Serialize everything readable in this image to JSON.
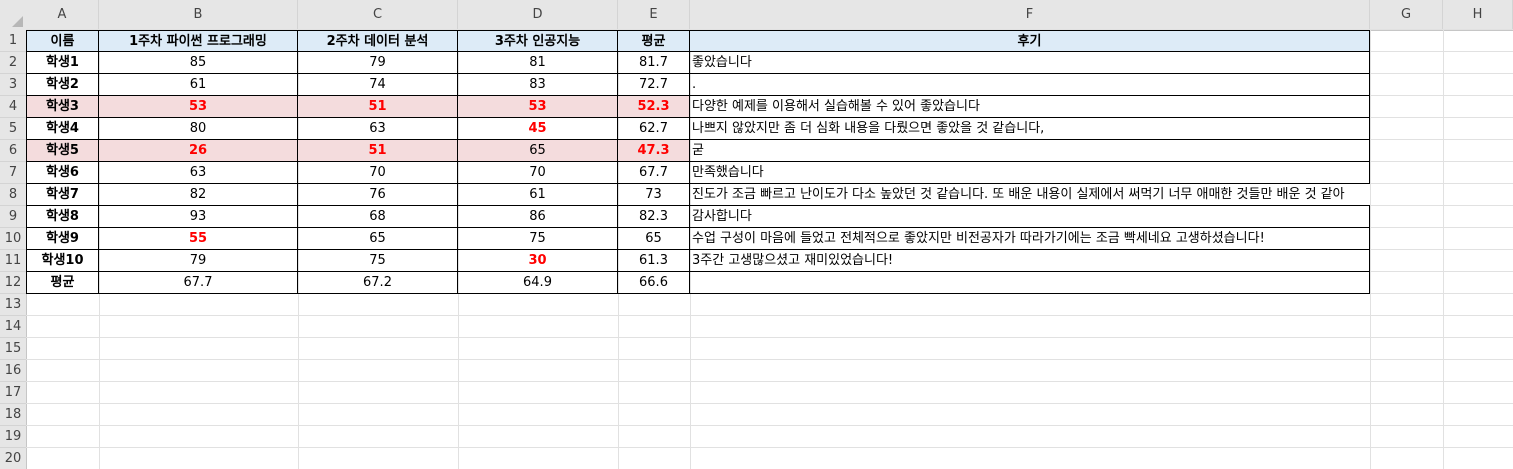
{
  "columns": [
    "A",
    "B",
    "C",
    "D",
    "E",
    "F",
    "G",
    "H"
  ],
  "row_numbers": [
    "1",
    "2",
    "3",
    "4",
    "5",
    "6",
    "7",
    "8",
    "9",
    "10",
    "11",
    "12",
    "13",
    "14",
    "15",
    "16",
    "17",
    "18",
    "19",
    "20"
  ],
  "headers": [
    "이름",
    "1주차 파이썬 프로그래밍",
    "2주차 데이터 분석",
    "3주차 인공지능",
    "평균",
    "후기"
  ],
  "rows": [
    {
      "name": "학생1",
      "b": "85",
      "c": "79",
      "d": "81",
      "e": "81.7",
      "f": "좋았습니다",
      "highlight": false,
      "red": []
    },
    {
      "name": "학생2",
      "b": "61",
      "c": "74",
      "d": "83",
      "e": "72.7",
      "f": ".",
      "highlight": false,
      "red": []
    },
    {
      "name": "학생3",
      "b": "53",
      "c": "51",
      "d": "53",
      "e": "52.3",
      "f": "다양한 예제를 이용해서 실습해볼 수 있어 좋았습니다",
      "highlight": true,
      "red": [
        "b",
        "c",
        "d",
        "e"
      ]
    },
    {
      "name": "학생4",
      "b": "80",
      "c": "63",
      "d": "45",
      "e": "62.7",
      "f": "나쁘지 않았지만 좀 더 심화 내용을 다뤘으면 좋았을 것 같습니다,",
      "highlight": false,
      "red": [
        "d"
      ]
    },
    {
      "name": "학생5",
      "b": "26",
      "c": "51",
      "d": "65",
      "e": "47.3",
      "f": "굳",
      "highlight": true,
      "red": [
        "b",
        "c",
        "e"
      ]
    },
    {
      "name": "학생6",
      "b": "63",
      "c": "70",
      "d": "70",
      "e": "67.7",
      "f": "만족했습니다",
      "highlight": false,
      "red": []
    },
    {
      "name": "학생7",
      "b": "82",
      "c": "76",
      "d": "61",
      "e": "73",
      "f": "진도가 조금 빠르고 난이도가 다소 높았던 것 같습니다. 또 배운 내용이 실제에서 써먹기 너무 애매한 것들만 배운 것 같아",
      "highlight": false,
      "red": []
    },
    {
      "name": "학생8",
      "b": "93",
      "c": "68",
      "d": "86",
      "e": "82.3",
      "f": "감사합니다",
      "highlight": false,
      "red": []
    },
    {
      "name": "학생9",
      "b": "55",
      "c": "65",
      "d": "75",
      "e": "65",
      "f": "수업 구성이 마음에 들었고 전체적으로 좋았지만 비전공자가 따라가기에는 조금 빡세네요 고생하셨습니다!",
      "highlight": false,
      "red": [
        "b"
      ]
    },
    {
      "name": "학생10",
      "b": "79",
      "c": "75",
      "d": "30",
      "e": "61.3",
      "f": "3주간 고생많으셨고 재미있었습니다!",
      "highlight": false,
      "red": [
        "d"
      ]
    }
  ],
  "avg_row": {
    "name": "평균",
    "b": "67.7",
    "c": "67.2",
    "d": "64.9",
    "e": "66.6",
    "f": ""
  },
  "colors": {
    "header_fill": "#ddebf7",
    "highlight_fill": "#f4dcdd",
    "red_text": "#ff0000",
    "sheet_header": "#e6e6e6"
  }
}
